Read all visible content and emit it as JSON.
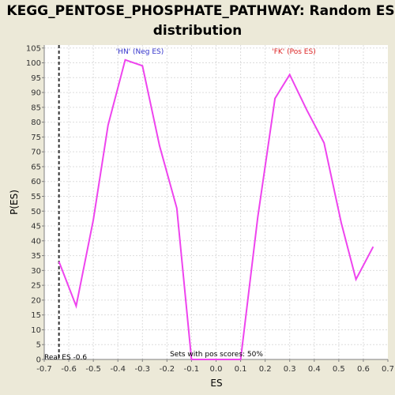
{
  "chart_data": {
    "type": "line",
    "title_line1": "KEGG_PENTOSE_PHOSPHATE_PATHWAY: Random ES",
    "title_line2": "distribution",
    "xlabel": "ES",
    "ylabel": "P(ES)",
    "xlim": [
      -0.7,
      0.7
    ],
    "ylim": [
      0,
      106
    ],
    "x_ticks": [
      -0.7,
      -0.6,
      -0.5,
      -0.4,
      -0.3,
      -0.2,
      -0.1,
      0.0,
      0.1,
      0.2,
      0.3,
      0.4,
      0.5,
      0.6,
      0.7
    ],
    "x_tick_labels": [
      "-0.7",
      "-0.6",
      "-0.5",
      "-0.4",
      "-0.3",
      "-0.2",
      "-0.1",
      "0.0",
      "0.1",
      "0.2",
      "0.3",
      "0.4",
      "0.5",
      "0.6",
      "0.7"
    ],
    "y_ticks": [
      0,
      5,
      10,
      15,
      20,
      25,
      30,
      35,
      40,
      45,
      50,
      55,
      60,
      65,
      70,
      75,
      80,
      85,
      90,
      95,
      100,
      105
    ],
    "grid": true,
    "series": [
      {
        "color": "#EE44EE",
        "points": [
          [
            -0.64,
            33
          ],
          [
            -0.57,
            18
          ],
          [
            -0.5,
            47
          ],
          [
            -0.44,
            79
          ],
          [
            -0.37,
            101
          ],
          [
            -0.3,
            99
          ],
          [
            -0.23,
            72
          ],
          [
            -0.16,
            51
          ],
          [
            -0.1,
            0
          ],
          [
            0.1,
            0
          ],
          [
            0.17,
            48
          ],
          [
            0.24,
            88
          ],
          [
            0.3,
            96
          ],
          [
            0.37,
            84
          ],
          [
            0.44,
            73
          ],
          [
            0.51,
            46
          ],
          [
            0.57,
            27
          ],
          [
            0.64,
            38
          ]
        ]
      }
    ],
    "real_es": -0.64,
    "real_es_label": "Real ES -0.6",
    "neg_label": "'HN' (Neg ES)",
    "neg_label_color": "#3333CC",
    "pos_label": "'FK' (Pos ES)",
    "pos_label_color": "#DD2222",
    "sets_label": "Sets with pos scores: 50%"
  }
}
